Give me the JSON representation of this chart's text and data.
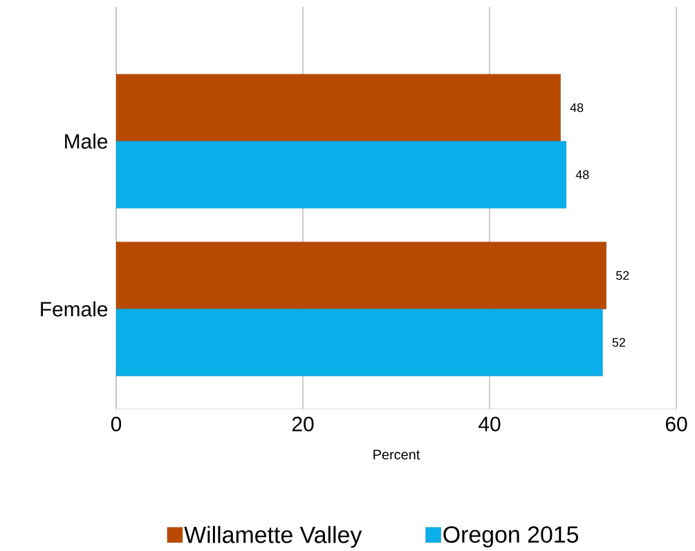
{
  "chart_data": {
    "type": "bar",
    "orientation": "horizontal",
    "xlabel": "Percent",
    "categories": [
      "Male",
      "Female"
    ],
    "series": [
      {
        "name": "Willamette Valley",
        "color": "#b84a00",
        "values": [
          47.6,
          52.5
        ],
        "value_labels": [
          "48",
          "52"
        ]
      },
      {
        "name": "Oregon 2015",
        "color": "#0aaee8",
        "values": [
          48.2,
          52.1
        ],
        "value_labels": [
          "48",
          "52"
        ]
      }
    ],
    "xlim": [
      0,
      60
    ],
    "xticks": [
      0,
      20,
      40,
      60
    ],
    "grid": "x",
    "legend": "bottom"
  }
}
